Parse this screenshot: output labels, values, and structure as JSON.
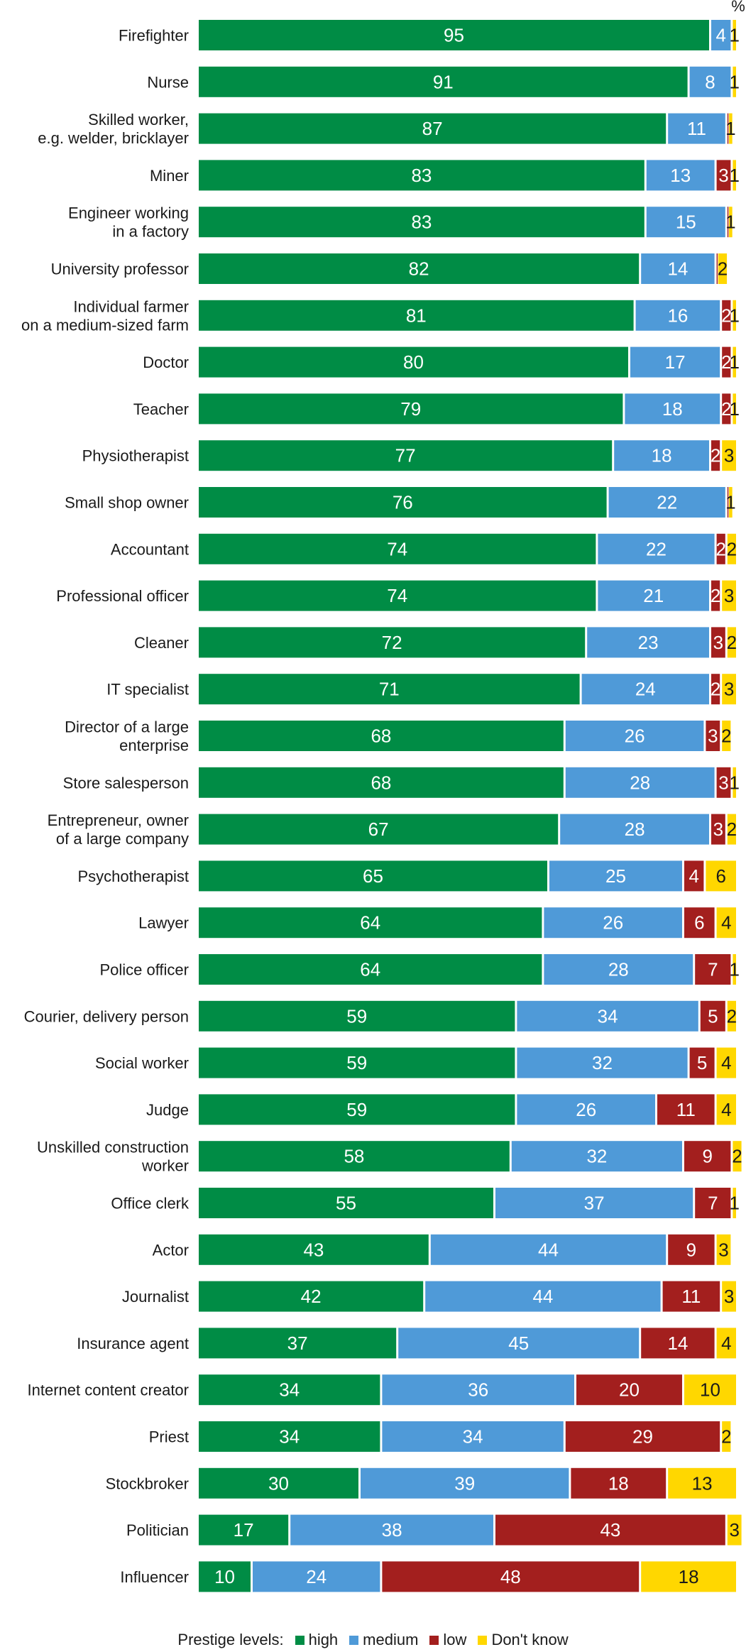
{
  "chart_data": {
    "type": "bar",
    "orientation": "horizontal",
    "stacked": true,
    "unit": "%",
    "xlim": [
      0,
      100
    ],
    "categories": [
      "Firefighter",
      "Nurse",
      "Skilled worker,\ne.g. welder, bricklayer",
      "Miner",
      "Engineer working\nin a factory",
      "University professor",
      "Individual farmer\non a medium-sized farm",
      "Doctor",
      "Teacher",
      "Physiotherapist",
      "Small shop owner",
      "Accountant",
      "Professional officer",
      "Cleaner",
      "IT specialist",
      "Director of a large\nenterprise",
      "Store salesperson",
      "Entrepreneur, owner\nof a large company",
      "Psychotherapist",
      "Lawyer",
      "Police officer",
      "Courier, delivery person",
      "Social worker",
      "Judge",
      "Unskilled construction\nworker",
      "Office clerk",
      "Actor",
      "Journalist",
      "Insurance agent",
      "Internet content creator",
      "Priest",
      "Stockbroker",
      "Politician",
      "Influencer"
    ],
    "series": [
      {
        "name": "high",
        "color": "#008c45",
        "values": [
          95,
          91,
          87,
          83,
          83,
          82,
          81,
          80,
          79,
          77,
          76,
          74,
          74,
          72,
          71,
          68,
          68,
          67,
          65,
          64,
          64,
          59,
          59,
          59,
          58,
          55,
          43,
          42,
          37,
          34,
          34,
          30,
          17,
          10
        ],
        "labels": [
          "95",
          "91",
          "87",
          "83",
          "83",
          "82",
          "81",
          "80",
          "79",
          "77",
          "76",
          "74",
          "74",
          "72",
          "71",
          "68",
          "68",
          "67",
          "65",
          "64",
          "64",
          "59",
          "59",
          "59",
          "58",
          "55",
          "43",
          "42",
          "37",
          "34",
          "34",
          "30",
          "17",
          "10"
        ]
      },
      {
        "name": "medium",
        "color": "#4f9ad8",
        "values": [
          4,
          8,
          11,
          13,
          15,
          14,
          16,
          17,
          18,
          18,
          22,
          22,
          21,
          23,
          24,
          26,
          28,
          28,
          25,
          26,
          28,
          34,
          32,
          26,
          32,
          37,
          44,
          44,
          45,
          36,
          34,
          39,
          38,
          24
        ],
        "labels": [
          "4",
          "8",
          "11",
          "13",
          "15",
          "14",
          "16",
          "17",
          "18",
          "18",
          "22",
          "22",
          "21",
          "23",
          "24",
          "26",
          "28",
          "28",
          "25",
          "26",
          "28",
          "34",
          "32",
          "26",
          "32",
          "37",
          "44",
          "44",
          "45",
          "36",
          "34",
          "39",
          "38",
          "24"
        ]
      },
      {
        "name": "low",
        "color": "#a31f1e",
        "values": [
          0,
          0,
          0.3,
          3,
          0.3,
          0.3,
          2,
          2,
          2,
          2,
          0.3,
          2,
          2,
          3,
          2,
          3,
          3,
          3,
          4,
          6,
          7,
          5,
          5,
          11,
          9,
          7,
          9,
          11,
          14,
          20,
          29,
          18,
          43,
          48
        ],
        "labels": [
          "",
          "",
          "",
          "3",
          "",
          "",
          "2",
          "2",
          "2",
          "2",
          "",
          "2",
          "2",
          "3",
          "2",
          "3",
          "3",
          "3",
          "4",
          "6",
          "7",
          "5",
          "5",
          "11",
          "9",
          "7",
          "9",
          "11",
          "14",
          "20",
          "29",
          "18",
          "43",
          "48"
        ]
      },
      {
        "name": "Don't know",
        "color": "#ffd700",
        "values": [
          1,
          1,
          1,
          1,
          1,
          2,
          1,
          1,
          1,
          3,
          1,
          2,
          3,
          2,
          3,
          2,
          1,
          2,
          6,
          4,
          1,
          2,
          4,
          4,
          2,
          1,
          3,
          3,
          4,
          10,
          2,
          13,
          3,
          18
        ],
        "labels": [
          "1",
          "1",
          "1",
          "1",
          "1",
          "2",
          "1",
          "1",
          "1",
          "3",
          "1",
          "2",
          "3",
          "2",
          "3",
          "2",
          "1",
          "2",
          "6",
          "4",
          "1",
          "2",
          "4",
          "4",
          "2",
          "1",
          "3",
          "3",
          "4",
          "10",
          "2",
          "13",
          "3",
          "18"
        ]
      }
    ],
    "unit_label": "%",
    "legend": {
      "title": "Prestige levels:",
      "placement": "bottom",
      "items": [
        "high",
        "medium",
        "low",
        "Don't know"
      ]
    }
  }
}
